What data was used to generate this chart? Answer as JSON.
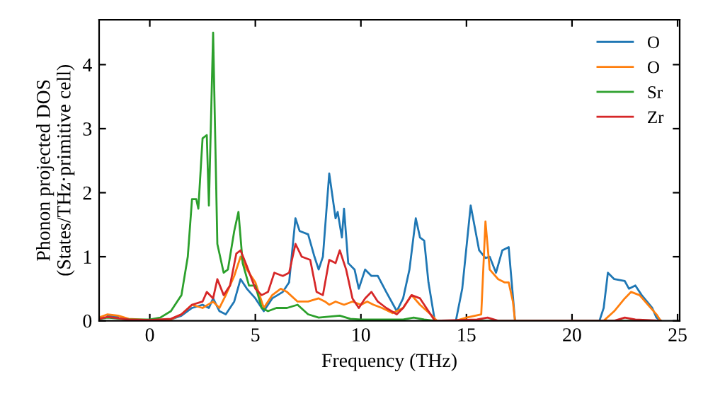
{
  "chart_data": {
    "type": "line",
    "xlabel": "Frequency (THz)",
    "ylabel": "Phonon projected DOS\n(States/THz·primitive cell)",
    "xlim": [
      -2.4,
      25.1
    ],
    "ylim": [
      0,
      4.7
    ],
    "xticks": [
      0,
      5,
      10,
      15,
      20,
      25
    ],
    "yticks": [
      0,
      1,
      2,
      3,
      4
    ],
    "grid": false,
    "legend": "top right",
    "marker": "none",
    "line_style": "solid",
    "series": [
      {
        "name": "O",
        "color": "#1f77b4",
        "x": [
          -2,
          -1.5,
          -1,
          0,
          1,
          1.5,
          2,
          2.5,
          2.8,
          3,
          3.3,
          3.6,
          4,
          4.3,
          4.6,
          5,
          5.4,
          5.8,
          6.3,
          6.6,
          6.9,
          7.1,
          7.5,
          7.8,
          8,
          8.2,
          8.5,
          8.8,
          8.9,
          9.1,
          9.2,
          9.4,
          9.7,
          9.9,
          10.2,
          10.5,
          10.8,
          11.2,
          11.7,
          12,
          12.3,
          12.6,
          12.8,
          13,
          13.2,
          13.5,
          14.5,
          14.8,
          15.2,
          15.6,
          15.9,
          16.1,
          16.4,
          16.7,
          17,
          17.3,
          21.3,
          21.5,
          21.7,
          22,
          22.5,
          22.7,
          23,
          23.3,
          23.8,
          24,
          24.2
        ],
        "values": [
          0.08,
          0.06,
          null,
          0.01,
          0.02,
          0.08,
          0.2,
          0.25,
          0.2,
          0.35,
          0.15,
          0.1,
          0.3,
          0.65,
          0.5,
          0.35,
          0.15,
          0.35,
          0.45,
          0.6,
          1.6,
          1.4,
          1.35,
          1.0,
          0.8,
          1.0,
          2.3,
          1.6,
          1.7,
          1.3,
          1.75,
          0.9,
          0.8,
          0.5,
          0.8,
          0.7,
          0.7,
          0.45,
          0.15,
          0.35,
          0.8,
          1.6,
          1.3,
          1.25,
          0.6,
          0,
          0,
          0.5,
          1.8,
          1.1,
          0.98,
          1.0,
          0.75,
          1.1,
          1.15,
          0,
          0,
          0.2,
          0.75,
          0.65,
          0.62,
          0.5,
          0.55,
          0.4,
          0.2,
          0.05,
          0
        ]
      },
      {
        "name": "O",
        "color": "#ff7f0e",
        "x": [
          -2.4,
          -2,
          -1.5,
          -1,
          0,
          1,
          1.5,
          2,
          2.5,
          3,
          3.3,
          3.6,
          4,
          4.3,
          4.6,
          5,
          5.4,
          5.8,
          6.2,
          6.5,
          7,
          7.5,
          8,
          8.3,
          8.5,
          8.8,
          9.2,
          9.6,
          10,
          10.3,
          10.6,
          11,
          11.5,
          12,
          12.4,
          12.8,
          13.3,
          13.6,
          14.5,
          15,
          15.7,
          15.9,
          16.1,
          16.5,
          16.8,
          17,
          17.2,
          17.3,
          21.5,
          22,
          22.5,
          22.8,
          23.2,
          23.6,
          24,
          24.2
        ],
        "values": [
          0.05,
          0.1,
          0.08,
          0.03,
          0.01,
          0.02,
          0.1,
          0.25,
          0.2,
          0.3,
          0.2,
          0.4,
          0.7,
          1.0,
          0.8,
          0.6,
          0.2,
          0.4,
          0.5,
          0.45,
          0.3,
          0.3,
          0.35,
          0.3,
          0.25,
          0.3,
          0.25,
          0.3,
          0.25,
          0.3,
          0.25,
          0.2,
          0.12,
          0.2,
          0.4,
          0.25,
          0.1,
          0,
          0,
          0.05,
          0.1,
          1.55,
          0.8,
          0.65,
          0.6,
          0.6,
          0.3,
          0,
          0,
          0.15,
          0.35,
          0.45,
          0.4,
          0.25,
          0.1,
          0
        ]
      },
      {
        "name": "Sr",
        "color": "#2ca02c",
        "x": [
          -2.4,
          -2,
          -1,
          0,
          0.5,
          1,
          1.5,
          1.8,
          2,
          2.2,
          2.3,
          2.5,
          2.7,
          2.8,
          3,
          3.2,
          3.5,
          3.7,
          4,
          4.2,
          4.4,
          4.7,
          5,
          5.3,
          5.6,
          6,
          6.5,
          7,
          7.5,
          8,
          9,
          9.5,
          10,
          12,
          12.5,
          13,
          13.5,
          24.2
        ],
        "values": [
          0.03,
          0.05,
          0.02,
          0.02,
          0.05,
          0.15,
          0.4,
          1.0,
          1.9,
          1.9,
          1.75,
          2.85,
          2.9,
          1.8,
          4.5,
          1.2,
          0.75,
          0.8,
          1.4,
          1.7,
          0.9,
          0.55,
          0.55,
          0.2,
          0.15,
          0.2,
          0.2,
          0.25,
          0.1,
          0.05,
          0.08,
          0.03,
          0.02,
          0.02,
          0.05,
          0.02,
          0,
          0
        ]
      },
      {
        "name": "Zr",
        "color": "#d62728",
        "x": [
          -2.4,
          -2,
          -1,
          0,
          1,
          1.5,
          2,
          2.5,
          2.7,
          3,
          3.2,
          3.5,
          3.8,
          4.1,
          4.3,
          4.6,
          5,
          5.3,
          5.6,
          5.9,
          6.3,
          6.6,
          6.9,
          7.2,
          7.6,
          7.9,
          8.2,
          8.5,
          8.8,
          9.0,
          9.3,
          9.6,
          9.9,
          10.2,
          10.5,
          10.8,
          11.2,
          11.7,
          12,
          12.4,
          12.8,
          13.2,
          13.5,
          15.5,
          16,
          16.5,
          22,
          22.5,
          23,
          24.2
        ],
        "values": [
          0.03,
          0.06,
          0.02,
          0.01,
          0.03,
          0.1,
          0.25,
          0.3,
          0.45,
          0.35,
          0.65,
          0.4,
          0.55,
          1.05,
          1.1,
          0.85,
          0.5,
          0.4,
          0.45,
          0.75,
          0.7,
          0.75,
          1.2,
          1.0,
          0.95,
          0.45,
          0.4,
          0.95,
          0.9,
          1.1,
          0.8,
          0.35,
          0.2,
          0.35,
          0.45,
          0.3,
          0.2,
          0.1,
          0.2,
          0.4,
          0.35,
          0.15,
          0,
          0.02,
          0.05,
          0,
          0,
          0.05,
          0.02,
          0
        ]
      }
    ]
  }
}
